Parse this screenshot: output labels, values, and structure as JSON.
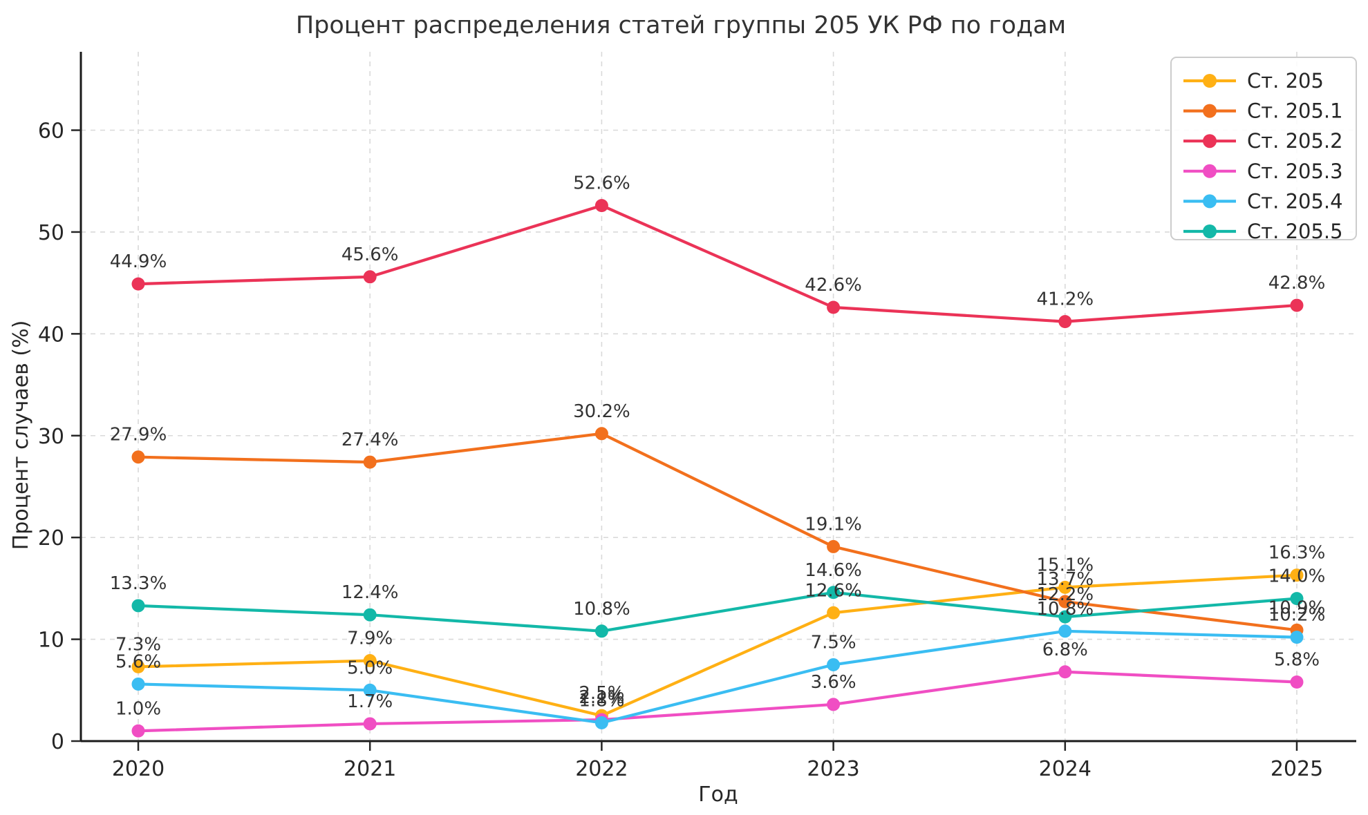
{
  "title": "Процент распределения статей группы 205 УК РФ по годам",
  "chart_data": {
    "type": "line",
    "x": [
      2020,
      2021,
      2022,
      2023,
      2024,
      2025
    ],
    "xlabel": "Год",
    "ylabel": "Процент случаев (%)",
    "ylim": [
      0,
      67.7
    ],
    "yticks": [
      0,
      10,
      20,
      30,
      40,
      50,
      60
    ],
    "grid": true,
    "legend_position": "upper right",
    "point_label_format": "{value}%",
    "series": [
      {
        "name": "Ст. 205",
        "color": "#FFB014",
        "values": [
          7.3,
          7.9,
          2.5,
          12.6,
          15.1,
          16.3
        ]
      },
      {
        "name": "Ст. 205.1",
        "color": "#F2701D",
        "values": [
          27.9,
          27.4,
          30.2,
          19.1,
          13.7,
          10.9
        ]
      },
      {
        "name": "Ст. 205.2",
        "color": "#EB3357",
        "values": [
          44.9,
          45.6,
          52.6,
          42.6,
          41.2,
          42.8
        ]
      },
      {
        "name": "Ст. 205.3",
        "color": "#F04EC3",
        "values": [
          1.0,
          1.7,
          2.1,
          3.6,
          6.8,
          5.8
        ]
      },
      {
        "name": "Ст. 205.4",
        "color": "#3ABDF2",
        "values": [
          5.6,
          5.0,
          1.8,
          7.5,
          10.8,
          10.2
        ]
      },
      {
        "name": "Ст. 205.5",
        "color": "#13B8A8",
        "values": [
          13.3,
          12.4,
          10.8,
          14.6,
          12.2,
          14.0
        ]
      }
    ]
  }
}
